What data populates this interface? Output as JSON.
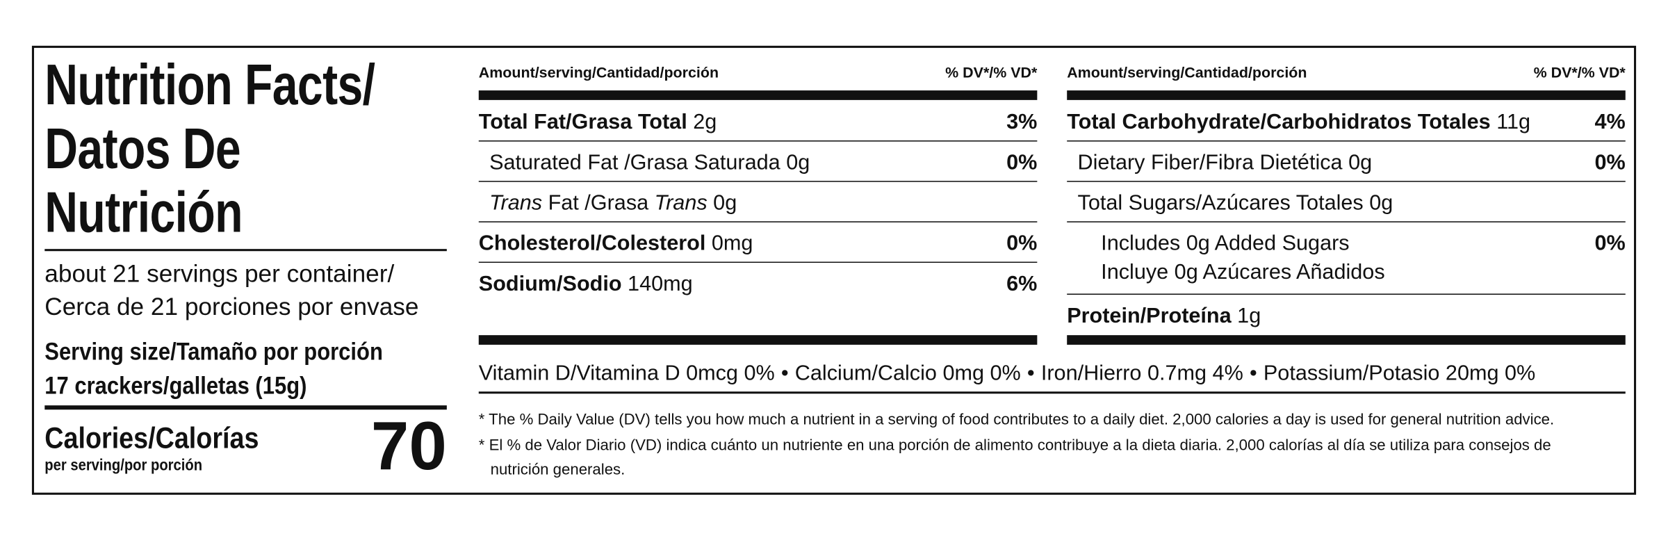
{
  "left": {
    "title": [
      "Nutrition Facts/",
      "Datos De",
      "Nutrición"
    ],
    "servings": [
      "about 21 servings per container/",
      "Cerca de 21 porciones por envase"
    ],
    "serving_size_label": "Serving size/Tamaño por porción",
    "serving_size": "17 crackers/galletas (15g)",
    "calories_label": "Calories/Calorías",
    "calories_sub": "per serving/por porción",
    "calories": 70
  },
  "left_table": {
    "amount_header": "Amount/serving/Cantidad/porción",
    "dv_header": "% DV*/% VD*",
    "rows": [
      {
        "name": "Total Fat/Grasa Total",
        "amount": "2g",
        "dv": "3%"
      },
      {
        "name": "Saturated Fat /Grasa Saturada",
        "amount": "0g",
        "dv": "0%"
      },
      {
        "name_parts": [
          "Trans",
          " Fat /Grasa ",
          "Trans"
        ],
        "amount": "0g"
      },
      {
        "name": "Cholesterol/Colesterol",
        "amount": "0mg",
        "dv": "0%"
      },
      {
        "name": "Sodium/Sodio",
        "amount": "140mg",
        "dv": "6%"
      }
    ]
  },
  "right_table": {
    "amount_header": "Amount/serving/Cantidad/porción",
    "dv_header": "% DV*/% VD*",
    "rows": [
      {
        "name": "Total Carbohydrate/Carbohidratos Totales",
        "amount": "11g",
        "dv": "4%"
      },
      {
        "name": "Dietary Fiber/Fibra Dietética",
        "amount": "0g",
        "dv": "0%"
      },
      {
        "name": "Total Sugars/Azúcares Totales",
        "amount": "0g"
      },
      {
        "lines": [
          "Includes 0g Added Sugars",
          "Incluye 0g Azúcares Añadidos"
        ],
        "dv": "0%"
      },
      {
        "name": "Protein/Proteína",
        "amount": "1g"
      }
    ]
  },
  "vitamins": [
    "Vitamin D/Vitamina D 0mcg 0%",
    "Calcium/Calcio 0mg 0%",
    "Iron/Hierro 0.7mg 4%",
    "Potassium/Potasio 20mg 0%"
  ],
  "footnotes": [
    "* The % Daily Value (DV) tells you how much a nutrient in a serving of food contributes to a daily diet. 2,000 calories a day is used for general nutrition advice.",
    "* El % de Valor Diario (VD) indica cuánto un nutriente en una porción de alimento contribuye a la dieta diaria. 2,000 calorías al día se utiliza para consejos de",
    "nutrición generales."
  ]
}
